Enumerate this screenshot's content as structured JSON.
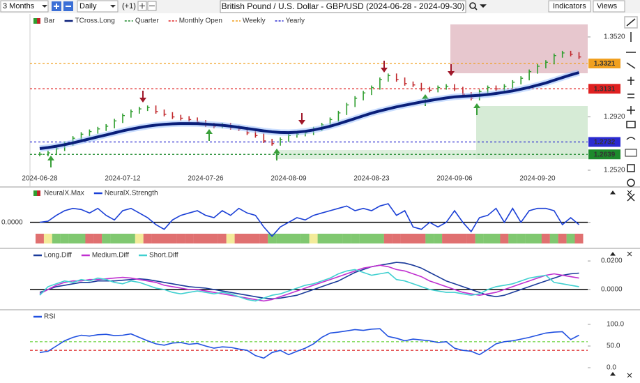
{
  "toolbar": {
    "range": "3 Months",
    "interval": "Daily",
    "offset": "(+1)",
    "title": "British Pound / U.S. Dollar - GBP/USD (2024-06-28 - 2024-09-30)",
    "indicators": "Indicators",
    "views": "Views"
  },
  "chart_data": [
    {
      "type": "candlestick",
      "categories": [
        "2024-06-28",
        null,
        null,
        null,
        null,
        null,
        null,
        null,
        null,
        null,
        "2024-07-12",
        null,
        null,
        null,
        null,
        null,
        null,
        null,
        null,
        null,
        "2024-07-26",
        null,
        null,
        null,
        null,
        null,
        null,
        null,
        null,
        null,
        "2024-08-09",
        null,
        null,
        null,
        null,
        null,
        null,
        null,
        null,
        null,
        "2024-08-23",
        null,
        null,
        null,
        null,
        null,
        null,
        null,
        null,
        null,
        "2024-09-06",
        null,
        null,
        null,
        null,
        null,
        null,
        null,
        null,
        null,
        "2024-09-20",
        null,
        null,
        null,
        null,
        null
      ],
      "series": [
        {
          "name": "Bar",
          "up_color": "#2f9e2f",
          "down_color": "#c0262a",
          "values": [
            1.264,
            1.265,
            1.268,
            1.272,
            1.276,
            1.279,
            1.281,
            1.283,
            1.285,
            1.289,
            1.293,
            1.296,
            1.298,
            1.299,
            1.296,
            1.294,
            1.292,
            1.291,
            1.29,
            1.288,
            1.286,
            1.285,
            1.286,
            1.284,
            1.283,
            1.28,
            1.278,
            1.274,
            1.272,
            1.275,
            1.278,
            1.279,
            1.28,
            1.283,
            1.286,
            1.29,
            1.295,
            1.301,
            1.306,
            1.31,
            1.314,
            1.32,
            1.323,
            1.32,
            1.317,
            1.316,
            1.313,
            1.312,
            1.314,
            1.315,
            1.313,
            1.309,
            1.306,
            1.311,
            1.314,
            1.313,
            1.315,
            1.318,
            1.321,
            1.326,
            1.33,
            1.333,
            1.338,
            1.34,
            1.339,
            1.337
          ]
        },
        {
          "name": "TCross.Long",
          "color": "#0a1f7a",
          "values": [
            1.2682,
            1.269,
            1.27,
            1.2712,
            1.2725,
            1.274,
            1.2755,
            1.277,
            1.2785,
            1.28,
            1.2815,
            1.2828,
            1.284,
            1.285,
            1.2858,
            1.2864,
            1.2868,
            1.287,
            1.287,
            1.2869,
            1.2866,
            1.2862,
            1.2857,
            1.285,
            1.2842,
            1.2833,
            1.2824,
            1.2815,
            1.2808,
            1.2803,
            1.2802,
            1.2805,
            1.2812,
            1.2822,
            1.2835,
            1.285,
            1.2868,
            1.2888,
            1.2908,
            1.2928,
            1.2948,
            1.2965,
            1.298,
            1.2995,
            1.3008,
            1.302,
            1.3032,
            1.3043,
            1.3053,
            1.3062,
            1.307,
            1.3075,
            1.3078,
            1.3082,
            1.3088,
            1.3096,
            1.3105,
            1.3115,
            1.3128,
            1.3142,
            1.3158,
            1.3175,
            1.3195,
            1.3215,
            1.3235,
            1.3253
          ]
        }
      ],
      "levels": [
        {
          "name": "Quarter",
          "color": "#1d8a2c",
          "value": 1.2639
        },
        {
          "name": "Monthly Open",
          "color": "#e02020",
          "value": 1.3131
        },
        {
          "name": "Weekly",
          "color": "#f0a020",
          "value": 1.3321
        },
        {
          "name": "Yearly",
          "color": "#2a2ad0",
          "value": 1.2732
        }
      ],
      "ylim": [
        1.241,
        1.3614
      ],
      "yticks": [
        {
          "value": 1.352,
          "label": "1.3520"
        },
        {
          "value": 1.292,
          "label": "1.2920"
        },
        {
          "value": 1.252,
          "label": "1.2520"
        }
      ]
    },
    {
      "type": "line",
      "series": [
        {
          "name": "NeuralX.Max",
          "colors": [
            "#e07070",
            "#f3eb9a",
            "#80c870",
            "#80c870",
            "#80c870",
            "#80c870",
            "#e07070",
            "#e07070",
            "#80c870",
            "#80c870",
            "#80c870",
            "#80c870",
            "#f3eb9a",
            "#e07070",
            "#e07070",
            "#e07070",
            "#e07070",
            "#e07070",
            "#e07070",
            "#e07070",
            "#e07070",
            "#e07070",
            "#e07070",
            "#f3eb9a",
            "#e07070",
            "#e07070",
            "#e07070",
            "#e07070",
            "#80c870",
            "#80c870",
            "#80c870",
            "#80c870",
            "#80c870",
            "#f3eb9a",
            "#80c870",
            "#80c870",
            "#80c870",
            "#80c870",
            "#80c870",
            "#80c870",
            "#80c870",
            "#80c870",
            "#e07070",
            "#e07070",
            "#e07070",
            "#e07070",
            "#e07070",
            "#80c870",
            "#80c870",
            "#e07070",
            "#e07070",
            "#e07070",
            "#e07070",
            "#80c870",
            "#80c870",
            "#80c870",
            "#e07070",
            "#80c870",
            "#80c870",
            "#80c870",
            "#80c870",
            "#e07070",
            "#80c870",
            "#e07070",
            "#80c870",
            "#e07070"
          ]
        },
        {
          "name": "NeuralX.Strength",
          "color": "#1a3fd6",
          "values": [
            0.0,
            0.05,
            0.3,
            0.5,
            0.6,
            0.55,
            0.4,
            0.6,
            0.3,
            0.1,
            0.5,
            0.6,
            0.4,
            0.2,
            -0.1,
            -0.3,
            0.1,
            0.3,
            0.4,
            0.5,
            0.3,
            0.2,
            0.5,
            0.3,
            0.6,
            0.4,
            0.3,
            -0.2,
            -0.6,
            -0.2,
            0.0,
            0.2,
            0.1,
            0.3,
            0.4,
            0.5,
            0.6,
            0.7,
            0.5,
            0.6,
            0.5,
            0.7,
            0.8,
            0.3,
            0.5,
            -0.2,
            -0.3,
            0.0,
            -0.2,
            0.0,
            0.5,
            0.0,
            -0.4,
            0.2,
            0.3,
            0.6,
            0.0,
            0.6,
            0.0,
            0.5,
            0.6,
            0.6,
            0.5,
            -0.1,
            0.2,
            -0.1
          ]
        }
      ],
      "ylim": [
        -1,
        1.1
      ],
      "yticks": [
        {
          "value": 0,
          "label": "0.0000"
        }
      ],
      "zero_line": true
    },
    {
      "type": "line",
      "series": [
        {
          "name": "Long.Diff",
          "color": "#1a3a9a",
          "values": [
            -0.002,
            0.0,
            0.002,
            0.003,
            0.004,
            0.005,
            0.005,
            0.006,
            0.006,
            0.006,
            0.0065,
            0.007,
            0.0075,
            0.007,
            0.006,
            0.005,
            0.004,
            0.003,
            0.002,
            0.0015,
            0.001,
            0.0,
            -0.001,
            -0.002,
            -0.003,
            -0.004,
            -0.005,
            -0.006,
            -0.0065,
            -0.006,
            -0.005,
            -0.004,
            -0.002,
            0.0,
            0.002,
            0.004,
            0.006,
            0.009,
            0.012,
            0.014,
            0.016,
            0.017,
            0.018,
            0.019,
            0.0185,
            0.017,
            0.015,
            0.012,
            0.009,
            0.006,
            0.004,
            0.002,
            0.0,
            -0.002,
            -0.004,
            -0.005,
            -0.004,
            -0.002,
            0.0,
            0.002,
            0.004,
            0.006,
            0.008,
            0.01,
            0.011,
            0.0115
          ]
        },
        {
          "name": "Medium.Diff",
          "color": "#c030d0",
          "values": [
            -0.003,
            0.0,
            0.003,
            0.005,
            0.006,
            0.006,
            0.007,
            0.007,
            0.0075,
            0.008,
            0.0085,
            0.008,
            0.007,
            0.006,
            0.005,
            0.003,
            0.002,
            0.001,
            0.0,
            0.0,
            -0.001,
            -0.002,
            -0.003,
            -0.004,
            -0.005,
            -0.006,
            -0.007,
            -0.008,
            -0.007,
            -0.005,
            -0.003,
            -0.001,
            0.001,
            0.003,
            0.005,
            0.007,
            0.009,
            0.011,
            0.013,
            0.015,
            0.016,
            0.017,
            0.016,
            0.014,
            0.013,
            0.011,
            0.009,
            0.006,
            0.004,
            0.002,
            0.0,
            -0.002,
            -0.003,
            -0.004,
            -0.003,
            -0.002,
            0.0,
            0.002,
            0.004,
            0.006,
            0.008,
            0.01,
            0.011,
            0.01,
            0.009,
            0.008
          ]
        },
        {
          "name": "Short.Diff",
          "color": "#40d0d0",
          "values": [
            -0.004,
            0.002,
            0.004,
            0.006,
            0.005,
            0.007,
            0.006,
            0.008,
            0.007,
            0.005,
            0.004,
            0.006,
            0.005,
            0.003,
            0.001,
            0.0,
            -0.002,
            -0.003,
            -0.002,
            -0.001,
            -0.002,
            -0.003,
            -0.002,
            -0.003,
            -0.005,
            -0.007,
            -0.008,
            -0.006,
            -0.004,
            -0.003,
            -0.001,
            0.001,
            0.003,
            0.004,
            0.006,
            0.008,
            0.011,
            0.013,
            0.014,
            0.012,
            0.01,
            0.011,
            0.012,
            0.007,
            0.006,
            0.004,
            0.002,
            0.0,
            -0.001,
            -0.002,
            -0.002,
            -0.003,
            -0.004,
            -0.003,
            0.0,
            0.002,
            0.003,
            0.004,
            0.006,
            0.008,
            0.009,
            0.01,
            0.005,
            0.004,
            0.003,
            0.002
          ]
        }
      ],
      "ylim": [
        -0.0122,
        0.0259
      ],
      "yticks": [
        {
          "value": 0.02,
          "label": "0.0200"
        },
        {
          "value": 0,
          "label": "0.0000"
        }
      ],
      "zero_line": true
    },
    {
      "type": "line",
      "series": [
        {
          "name": "RSI",
          "color": "#2050e0",
          "values": [
            35,
            38,
            50,
            62,
            70,
            75,
            73,
            76,
            77,
            74,
            75,
            78,
            70,
            62,
            55,
            52,
            57,
            58,
            54,
            56,
            50,
            45,
            48,
            47,
            43,
            40,
            28,
            22,
            35,
            40,
            30,
            38,
            45,
            55,
            70,
            80,
            82,
            85,
            88,
            86,
            89,
            90,
            72,
            68,
            62,
            66,
            64,
            62,
            58,
            60,
            45,
            40,
            38,
            30,
            42,
            55,
            60,
            62,
            66,
            70,
            75,
            80,
            82,
            83,
            65,
            75
          ]
        }
      ],
      "reference_lines": [
        {
          "value": 60,
          "color": "#7ed957"
        },
        {
          "value": 40,
          "color": "#e03c3c"
        }
      ],
      "ylim": [
        -16,
        116
      ],
      "yticks": [
        {
          "value": 100,
          "label": "100.0"
        },
        {
          "value": 50,
          "label": "50.0"
        },
        {
          "value": 0,
          "label": "0.0"
        }
      ]
    }
  ]
}
